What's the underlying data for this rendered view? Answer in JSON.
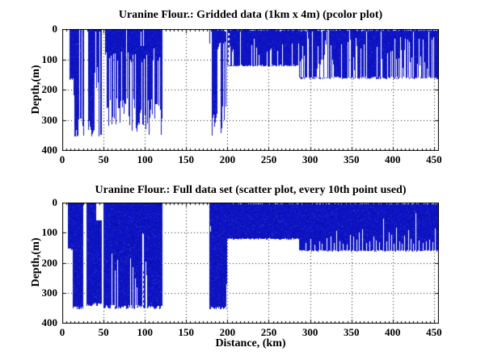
{
  "figure": {
    "background": "#ffffff",
    "axis_color": "#000000",
    "grid_style": "dotted"
  },
  "chart_data": [
    {
      "type": "heatmap",
      "title": "Uranine Flour.: Gridded data (1km x 4m) (pcolor plot)",
      "xlabel": "",
      "ylabel": "Depth,(m)",
      "xlim": [
        0,
        455
      ],
      "ylim": [
        0,
        400
      ],
      "y_axis_reversed": true,
      "xticks": [
        0,
        50,
        100,
        150,
        200,
        250,
        300,
        350,
        400,
        450
      ],
      "yticks": [
        0,
        100,
        200,
        300,
        400
      ],
      "x_minor_tick_km": 5,
      "grid": "dotted",
      "data_color": "#0e14c4",
      "data_color_dark": "#000d96",
      "data_color_light": "#2e3bd6",
      "seed": 7,
      "noise_dark": 0.07,
      "noise_light": 0.04,
      "coverage_segments": [
        {
          "x0": 8,
          "x1": 17,
          "top": 0,
          "bmin": 160,
          "bmax": 170,
          "gap": 0.05
        },
        {
          "x0": 13.5,
          "x1": 17,
          "top": 160,
          "bmin": 205,
          "bmax": 218,
          "gap": 0
        },
        {
          "x0": 14.5,
          "x1": 16.2,
          "top": 205,
          "bmin": 346,
          "bmax": 356,
          "gap": 0
        },
        {
          "x0": 17,
          "x1": 26,
          "top": 0,
          "bmin": 295,
          "bmax": 356,
          "gap": 0.33
        },
        {
          "x0": 31,
          "x1": 44,
          "top": 0,
          "bmin": 82,
          "bmax": 100,
          "gap": 0.12
        },
        {
          "x0": 31,
          "x1": 39,
          "top": 82,
          "bmin": 305,
          "bmax": 356,
          "gap": 0.38
        },
        {
          "x0": 39,
          "x1": 44,
          "top": 82,
          "bmin": 125,
          "bmax": 210,
          "gap": 0.3
        },
        {
          "x0": 44,
          "x1": 48.5,
          "top": 0,
          "bmin": 315,
          "bmax": 356,
          "gap": 0.33
        },
        {
          "x0": 52,
          "x1": 121,
          "top": 0,
          "bmin": 55,
          "bmax": 110,
          "gap": 0.1
        },
        {
          "x0": 52,
          "x1": 121,
          "top": 55,
          "bmin": 225,
          "bmax": 356,
          "gap": 0.26
        },
        {
          "x0": 178,
          "x1": 200,
          "top": 0,
          "bmin": 38,
          "bmax": 72,
          "gap": 0.12
        },
        {
          "x0": 178,
          "x1": 200,
          "top": 38,
          "bmin": 255,
          "bmax": 356,
          "gap": 0.3
        },
        {
          "x0": 200,
          "x1": 287,
          "top": 0,
          "bmin": 118,
          "bmax": 124,
          "gap": 0.04
        },
        {
          "x0": 287,
          "x1": 455,
          "top": 0,
          "bmin": 157,
          "bmax": 165,
          "gap": 0.03
        }
      ],
      "white_streak_zones": [
        {
          "x0": 200,
          "x1": 287,
          "prob": 0.12,
          "mode": "bottom",
          "base": 121,
          "hmin": 35,
          "hmax": 100
        },
        {
          "x0": 287,
          "x1": 455,
          "prob": 0.32,
          "mode": "bottom",
          "base": 161,
          "hmin": 25,
          "hmax": 140
        },
        {
          "x0": 287,
          "x1": 455,
          "prob": 0.05,
          "mode": "full",
          "y0": 8,
          "y1": 161
        },
        {
          "x0": 183,
          "x1": 455,
          "prob": 0.35,
          "mode": "top",
          "hmin": 2,
          "hmax": 7
        }
      ],
      "white_streak_lines": [
        {
          "x": 201,
          "y0": 14,
          "y1": 122,
          "dashed": true
        }
      ],
      "spikes": []
    },
    {
      "type": "scatter",
      "title": "Uranine Flour.: Full data set (scatter plot, every 10th point used)",
      "xlabel": "Distance, (km)",
      "ylabel": "Depth,(m)",
      "xlim": [
        0,
        455
      ],
      "ylim": [
        0,
        400
      ],
      "y_axis_reversed": true,
      "xticks": [
        0,
        50,
        100,
        150,
        200,
        250,
        300,
        350,
        400,
        450
      ],
      "yticks": [
        0,
        100,
        200,
        300,
        400
      ],
      "x_minor_tick_km": 5,
      "grid": "dotted",
      "data_color": "#0e14c4",
      "data_color_dark": "#000d96",
      "data_color_light": "#2e3bd6",
      "seed": 13,
      "noise_dark": 0.1,
      "noise_light": 0.05,
      "coverage_segments": [
        {
          "x0": 6.5,
          "x1": 25.5,
          "top": 0,
          "bmin": 152,
          "bmax": 158,
          "gap": 0
        },
        {
          "x0": 12.5,
          "x1": 25.5,
          "top": 152,
          "bmin": 344,
          "bmax": 356,
          "gap": 0
        },
        {
          "x0": 29.5,
          "x1": 41.5,
          "top": 0,
          "bmin": 333,
          "bmax": 345,
          "gap": 0
        },
        {
          "x0": 41.5,
          "x1": 47,
          "top": 58,
          "bmin": 333,
          "bmax": 345,
          "gap": 0
        },
        {
          "x0": 49.5,
          "x1": 96,
          "top": 0,
          "bmin": 340,
          "bmax": 354,
          "gap": 0
        },
        {
          "x0": 96,
          "x1": 99,
          "top": 0,
          "bmin": 100,
          "bmax": 112,
          "gap": 0
        },
        {
          "x0": 99,
          "x1": 121,
          "top": 0,
          "bmin": 342,
          "bmax": 354,
          "gap": 0
        },
        {
          "x0": 178,
          "x1": 200,
          "top": 0,
          "bmin": 346,
          "bmax": 356,
          "gap": 0
        },
        {
          "x0": 200,
          "x1": 287,
          "top": 0,
          "bmin": 119,
          "bmax": 123,
          "gap": 0
        },
        {
          "x0": 287,
          "x1": 455,
          "top": 0,
          "bmin": 158,
          "bmax": 163,
          "gap": 0
        }
      ],
      "white_streak_zones": [
        {
          "x0": 205,
          "x1": 455,
          "prob": 0.3,
          "mode": "top",
          "hmin": 2,
          "hmax": 6
        }
      ],
      "white_streak_lines": [
        {
          "x": 60,
          "y0": 170,
          "y1": 346
        },
        {
          "x": 63.5,
          "y0": 225,
          "y1": 346
        },
        {
          "x": 66.5,
          "y0": 190,
          "y1": 346
        },
        {
          "x": 82,
          "y0": 185,
          "y1": 346
        },
        {
          "x": 85.5,
          "y0": 215,
          "y1": 346
        },
        {
          "x": 88,
          "y0": 252,
          "y1": 346
        },
        {
          "x": 90.5,
          "y0": 282,
          "y1": 346
        },
        {
          "x": 100.5,
          "y0": 195,
          "y1": 348
        },
        {
          "x": 102,
          "y0": 242,
          "y1": 348
        },
        {
          "x": 178.6,
          "y0": 78,
          "y1": 96
        },
        {
          "x": 199,
          "y0": 272,
          "y1": 352
        },
        {
          "x": 97.6,
          "y0": 228,
          "y1": 350,
          "dashed": true,
          "color": "data"
        }
      ],
      "spikes": [
        {
          "x": 295,
          "h": 25
        },
        {
          "x": 300,
          "h": 38
        },
        {
          "x": 305,
          "h": 20
        },
        {
          "x": 311,
          "h": 32
        },
        {
          "x": 314,
          "h": 22
        },
        {
          "x": 320,
          "h": 42
        },
        {
          "x": 325,
          "h": 48
        },
        {
          "x": 329,
          "h": 25
        },
        {
          "x": 332,
          "h": 66
        },
        {
          "x": 336,
          "h": 30
        },
        {
          "x": 340,
          "h": 24
        },
        {
          "x": 344,
          "h": 20
        },
        {
          "x": 348,
          "h": 52
        },
        {
          "x": 352,
          "h": 46
        },
        {
          "x": 356,
          "h": 36
        },
        {
          "x": 359,
          "h": 62
        },
        {
          "x": 363,
          "h": 72
        },
        {
          "x": 368,
          "h": 26
        },
        {
          "x": 372,
          "h": 30
        },
        {
          "x": 377,
          "h": 46
        },
        {
          "x": 380,
          "h": 34
        },
        {
          "x": 384,
          "h": 28
        },
        {
          "x": 388,
          "h": 106
        },
        {
          "x": 392,
          "h": 30
        },
        {
          "x": 395,
          "h": 60
        },
        {
          "x": 398,
          "h": 52
        },
        {
          "x": 401,
          "h": 24
        },
        {
          "x": 404,
          "h": 76
        },
        {
          "x": 408,
          "h": 30
        },
        {
          "x": 411,
          "h": 22
        },
        {
          "x": 414,
          "h": 50
        },
        {
          "x": 419,
          "h": 68
        },
        {
          "x": 422,
          "h": 40
        },
        {
          "x": 425,
          "h": 24
        },
        {
          "x": 428,
          "h": 126
        },
        {
          "x": 432,
          "h": 34
        },
        {
          "x": 436,
          "h": 26
        },
        {
          "x": 440,
          "h": 30
        },
        {
          "x": 444,
          "h": 36
        },
        {
          "x": 448,
          "h": 28
        },
        {
          "x": 451,
          "h": 74
        }
      ]
    }
  ]
}
